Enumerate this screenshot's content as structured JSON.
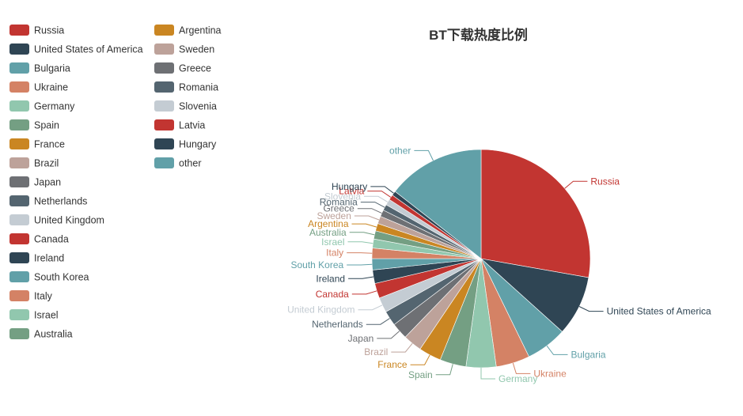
{
  "chart_data": {
    "type": "pie",
    "title": "BT下载热度比例",
    "legend_position": "left",
    "categories": [
      "Russia",
      "United States of America",
      "Bulgaria",
      "Ukraine",
      "Germany",
      "Spain",
      "France",
      "Brazil",
      "Japan",
      "Netherlands",
      "United Kingdom",
      "Canada",
      "Ireland",
      "South Korea",
      "Italy",
      "Israel",
      "Australia",
      "Argentina",
      "Sweden",
      "Greece",
      "Romania",
      "Slovenia",
      "Latvia",
      "Hungary",
      "other"
    ],
    "values": [
      25,
      8,
      5.5,
      4.5,
      4,
      3.5,
      3,
      2.5,
      2.2,
      2,
      2,
      2,
      1.8,
      1.5,
      1.4,
      1.2,
      1.1,
      1,
      1,
      0.9,
      0.8,
      0.8,
      0.7,
      0.6,
      13
    ],
    "colors": [
      "#c23531",
      "#2f4554",
      "#61a0a8",
      "#d48265",
      "#91c7ae",
      "#749f83",
      "#ca8622",
      "#bda29a",
      "#6e7074",
      "#546570",
      "#c4ccd3",
      "#c23531",
      "#2f4554",
      "#61a0a8",
      "#d48265",
      "#91c7ae",
      "#749f83",
      "#ca8622",
      "#bda29a",
      "#6e7074",
      "#546570",
      "#c4ccd3",
      "#c23531",
      "#2f4554",
      "#61a0a8"
    ]
  }
}
